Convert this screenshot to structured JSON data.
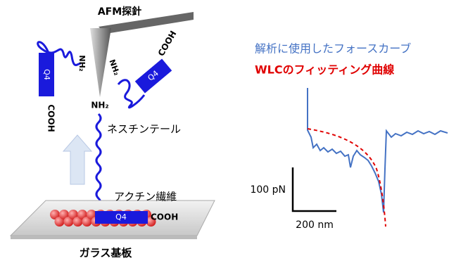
{
  "probe": {
    "label": "AFM探針"
  },
  "molecules": {
    "left": {
      "amine": "NH₂",
      "domain": "Q4",
      "terminus": "COOH"
    },
    "right": {
      "amine": "NH₂",
      "domain": "Q4",
      "terminus": "COOH"
    },
    "bottom": {
      "amine": "NH₂",
      "domain": "Q4",
      "terminus": "COOH"
    }
  },
  "tail_label": "ネスチンテール",
  "filament_label": "アクチン繊維",
  "substrate_label": "ガラス基板",
  "legend": [
    {
      "label": "解析に使用したフォースカーブ",
      "color": "#4472c4"
    },
    {
      "label": "WLCのフィッティング曲線",
      "color": "#e00000"
    }
  ],
  "scale_bars": {
    "y": "100 pN",
    "x": "200 nm"
  }
}
